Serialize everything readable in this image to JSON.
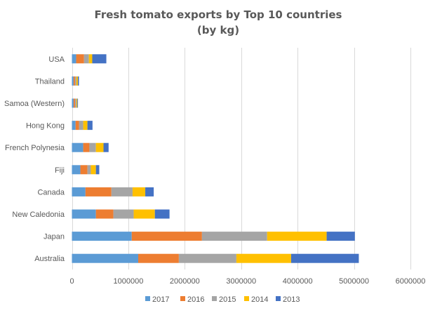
{
  "chart_data": {
    "type": "bar",
    "orientation": "horizontal",
    "stacked": true,
    "title": [
      "Fresh tomato exports by Top 10 countries",
      "(by kg)"
    ],
    "xlabel": "",
    "ylabel": "",
    "xlim": [
      0,
      6000000
    ],
    "xticks": [
      "0",
      "1000000",
      "2000000",
      "3000000",
      "4000000",
      "5000000",
      "6000000"
    ],
    "xtick_values": [
      0,
      1000000,
      2000000,
      3000000,
      4000000,
      5000000,
      6000000
    ],
    "grid": true,
    "legend_position": "bottom",
    "categories": [
      "USA",
      "Thailand",
      "Samoa (Western)",
      "Hong Kong",
      "French Polynesia",
      "Fiji",
      "Canada",
      "New Caledonia",
      "Japan",
      "Australia"
    ],
    "series": [
      {
        "name": "2017",
        "color": "#5B9BD5",
        "values": [
          75000,
          30000,
          30000,
          65000,
          200000,
          150000,
          240000,
          425000,
          1060000,
          1175000
        ]
      },
      {
        "name": "2016",
        "color": "#ED7D31",
        "values": [
          140000,
          25000,
          25000,
          60000,
          110000,
          125000,
          460000,
          310000,
          1245000,
          720000
        ]
      },
      {
        "name": "2015",
        "color": "#A5A5A5",
        "values": [
          85000,
          25000,
          25000,
          75000,
          115000,
          60000,
          375000,
          360000,
          1155000,
          1020000
        ]
      },
      {
        "name": "2014",
        "color": "#FFC000",
        "values": [
          60000,
          25000,
          15000,
          75000,
          135000,
          90000,
          225000,
          375000,
          1055000,
          970000
        ]
      },
      {
        "name": "2013",
        "color": "#4472C4",
        "values": [
          250000,
          20000,
          12000,
          90000,
          90000,
          60000,
          150000,
          260000,
          500000,
          1200000
        ]
      }
    ]
  }
}
